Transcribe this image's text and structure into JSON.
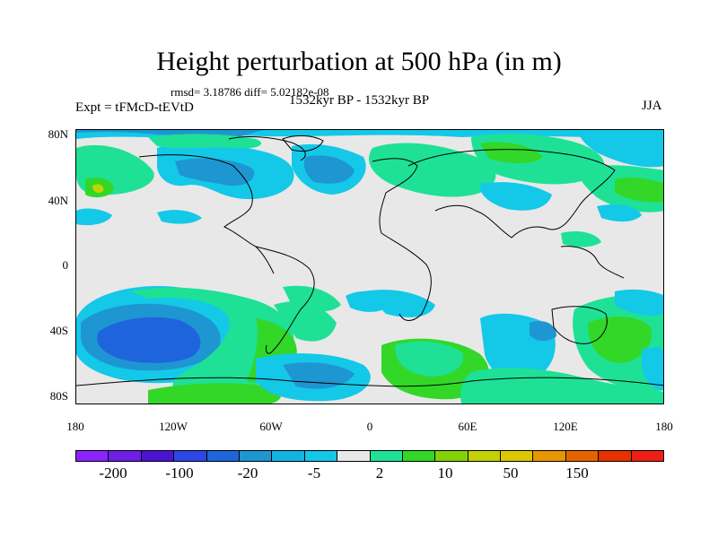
{
  "header": {
    "title": "Height perturbation at 500 hPa (in m)",
    "stats": "rmsd= 3.18786 diff= 5.02182e-08",
    "experiment": "Expt = tFMcD-tEVtD",
    "period": "1532kyr BP - 1532kyr BP",
    "season": "JJA"
  },
  "map": {
    "lat_labels": [
      "80N",
      "40N",
      "0",
      "40S",
      "80S"
    ],
    "lon_labels": [
      "180",
      "120W",
      "60W",
      "0",
      "60E",
      "120E",
      "180"
    ],
    "background_color": "#e8e8e8"
  },
  "colorbar": {
    "colors": [
      "#8b23ff",
      "#6e1ee6",
      "#4b14d2",
      "#2d46e6",
      "#1e64dc",
      "#1e96d2",
      "#14b4e1",
      "#14c8e8",
      "#e8e8e8",
      "#1ee196",
      "#32d728",
      "#82d205",
      "#c3d205",
      "#dcc800",
      "#e69600",
      "#e66400",
      "#e63200",
      "#f01e14"
    ],
    "labels": [
      "-200",
      "-100",
      "-20",
      "-5",
      "2",
      "10",
      "50",
      "150"
    ]
  }
}
